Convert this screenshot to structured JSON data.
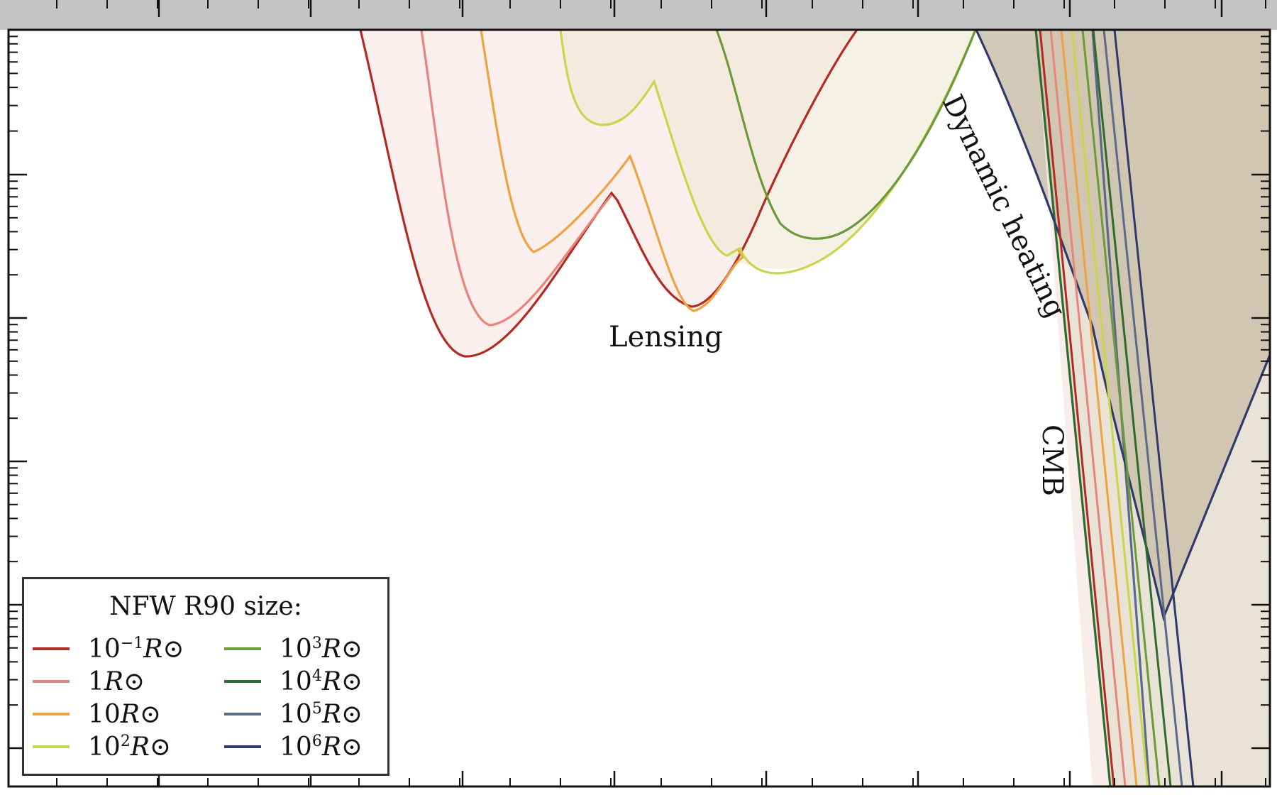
{
  "chart_data": {
    "type": "line",
    "title": "",
    "xlabel": "",
    "ylabel": "",
    "grid": false,
    "legend_placement": "bottom-left",
    "legend_title": "NFW R90 size:",
    "annotations": [
      "Lensing",
      "Dynamic heating",
      "CMB"
    ],
    "series": [
      {
        "name": "10^-1 R⊙",
        "legend_unit": "R⊙",
        "legend_base": "10",
        "legend_exp": "−1",
        "color": "#b22a22",
        "x": [
          0.0,
          1.0,
          2.0,
          3.0,
          4.0,
          5.0,
          6.0
        ],
        "y": [
          0.0,
          -1.0,
          -2.2,
          -1.1,
          -1.9,
          -0.9,
          0.0
        ]
      },
      {
        "name": "1 R⊙",
        "legend_unit": "R⊙",
        "legend_base": "1",
        "legend_exp": "",
        "color": "#e8847c",
        "x": [
          0.0,
          1.0,
          2.0,
          3.0
        ],
        "y": [
          0.0,
          -1.2,
          -2.0,
          -1.3
        ]
      },
      {
        "name": "10 R⊙",
        "legend_unit": "R⊙",
        "legend_base": "10",
        "legend_exp": "",
        "color": "#eea241",
        "x": [
          0.0,
          1.0,
          2.0,
          3.0,
          4.0,
          5.0
        ],
        "y": [
          0.0,
          -1.5,
          -0.9,
          -1.9,
          -1.6,
          -1.0
        ]
      },
      {
        "name": "10^2 R⊙",
        "legend_unit": "R⊙",
        "legend_base": "10",
        "legend_exp": "2",
        "color": "#c9d54a",
        "x": [
          0.0,
          1.0,
          2.0,
          3.0,
          4.0,
          5.0
        ],
        "y": [
          0.0,
          -0.7,
          -0.4,
          -1.5,
          -1.7,
          0.0
        ]
      },
      {
        "name": "10^3 R⊙",
        "legend_unit": "R⊙",
        "legend_base": "10",
        "legend_exp": "3",
        "color": "#6b9a3b",
        "x": [
          0.0,
          1.0,
          2.0,
          3.0
        ],
        "y": [
          0.0,
          -1.3,
          -0.6,
          0.0
        ]
      },
      {
        "name": "10^4 R⊙",
        "legend_unit": "R⊙",
        "legend_base": "10",
        "legend_exp": "4",
        "color": "#2e6b2d",
        "x": [
          0.0,
          1.0
        ],
        "y": [
          0.0,
          -5.2
        ]
      },
      {
        "name": "10^5 R⊙",
        "legend_unit": "R⊙",
        "legend_base": "10",
        "legend_exp": "5",
        "color": "#5a6a8a",
        "x": [
          0.0,
          1.0
        ],
        "y": [
          0.0,
          -5.2
        ]
      },
      {
        "name": "10^6 R⊙",
        "legend_unit": "R⊙",
        "legend_base": "10",
        "legend_exp": "6",
        "color": "#2e3a6e",
        "x": [
          0.0,
          1.0,
          2.0,
          3.0
        ],
        "y": [
          0.0,
          -4.0,
          -4.3,
          -2.3
        ]
      }
    ]
  }
}
